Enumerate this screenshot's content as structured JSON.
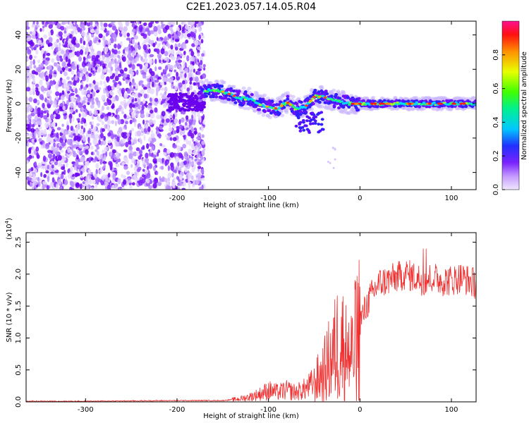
{
  "title": "C2E1.2023.057.14.05.R04",
  "colors": {
    "snr_line": "#f03030",
    "axis": "#000000"
  },
  "chart_data": [
    {
      "type": "heatmap",
      "xlabel": "Height of straight line (km)",
      "ylabel": "Frequency (Hz)",
      "xlim": [
        -365,
        127
      ],
      "ylim": [
        -50,
        48
      ],
      "xticks": [
        -300,
        -200,
        -100,
        0,
        100
      ],
      "yticks": [
        -40,
        -20,
        0,
        20,
        40
      ],
      "colorbar": {
        "label": "Normalized spectral amplitude",
        "range": [
          0,
          1
        ],
        "ticks": [
          "0.0",
          "0.2",
          "0.4",
          "0.6",
          "0.8"
        ],
        "tick_values": [
          0,
          0.2,
          0.4,
          0.6,
          0.8
        ]
      },
      "signal_track": [
        {
          "x": -175,
          "y": 7
        },
        {
          "x": -160,
          "y": 8
        },
        {
          "x": -150,
          "y": 7
        },
        {
          "x": -140,
          "y": 5
        },
        {
          "x": -130,
          "y": 3
        },
        {
          "x": -120,
          "y": 3
        },
        {
          "x": -110,
          "y": 0
        },
        {
          "x": -100,
          "y": -2
        },
        {
          "x": -90,
          "y": -3
        },
        {
          "x": -80,
          "y": 1
        },
        {
          "x": -70,
          "y": -3
        },
        {
          "x": -60,
          "y": -2
        },
        {
          "x": -50,
          "y": 4
        },
        {
          "x": -40,
          "y": 4
        },
        {
          "x": -30,
          "y": 2
        },
        {
          "x": -20,
          "y": 1
        },
        {
          "x": -10,
          "y": 0
        },
        {
          "x": 0,
          "y": 0
        },
        {
          "x": 20,
          "y": 0
        },
        {
          "x": 60,
          "y": 0
        },
        {
          "x": 100,
          "y": 0
        },
        {
          "x": 127,
          "y": 0
        }
      ]
    },
    {
      "type": "line",
      "xlabel": "Height of straight line (km)",
      "ylabel": "SNR (10 * v/v)",
      "yscale_label": "(x10",
      "yscale_exp": "4",
      "yscale_close": ")",
      "xlim": [
        -365,
        127
      ],
      "ylim": [
        0,
        2.65
      ],
      "xticks": [
        -300,
        -200,
        -100,
        0,
        100
      ],
      "yticks": [
        "0.0",
        "0.5",
        "1.0",
        "1.5",
        "2.0",
        "2.5"
      ],
      "ytick_values": [
        0,
        0.5,
        1.0,
        1.5,
        2.0,
        2.5
      ],
      "series": [
        {
          "x": [
            -365,
            -300,
            -200,
            -150,
            -130,
            -120,
            -110,
            -100,
            -90,
            -80,
            -70,
            -60,
            -50,
            -40,
            -35,
            -30,
            -25,
            -20,
            -15,
            -10,
            -5,
            0,
            10,
            20,
            30,
            40,
            50,
            60,
            70,
            80,
            90,
            100,
            110,
            127
          ],
          "y": [
            0.01,
            0.01,
            0.02,
            0.02,
            0.05,
            0.08,
            0.12,
            0.18,
            0.15,
            0.18,
            0.15,
            0.2,
            0.3,
            0.45,
            0.6,
            0.7,
            0.9,
            0.95,
            0.75,
            0.7,
            0.95,
            1.25,
            1.6,
            1.85,
            1.9,
            1.95,
            2.0,
            1.95,
            1.9,
            1.95,
            1.9,
            1.9,
            1.95,
            1.85
          ]
        }
      ]
    }
  ]
}
